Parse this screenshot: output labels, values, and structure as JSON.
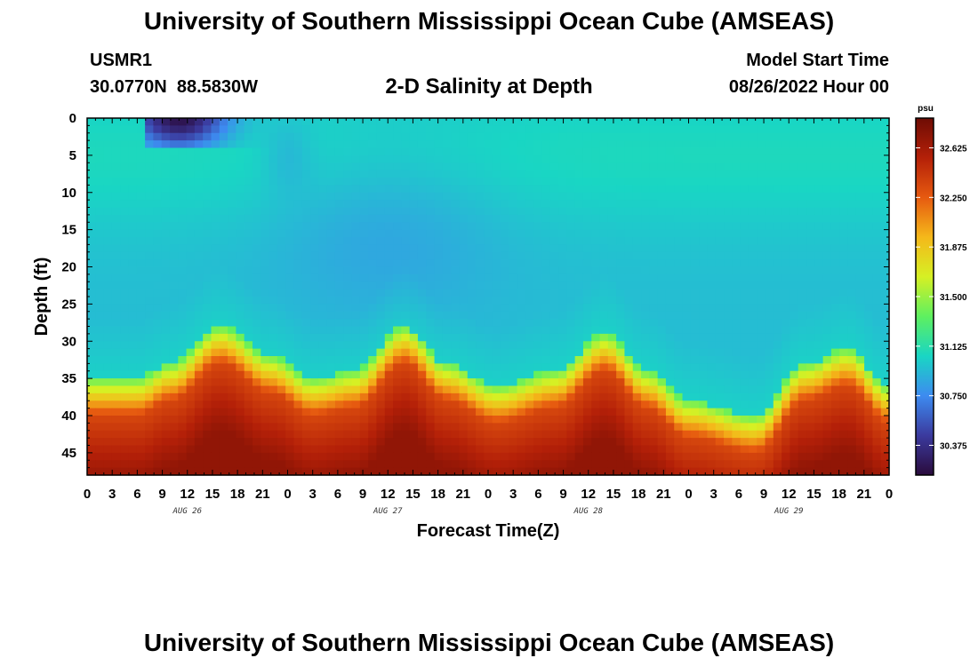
{
  "header": {
    "title": "University of Southern Mississippi Ocean Cube (AMSEAS)",
    "station_id": "USMR1",
    "station_coords": "30.0770N  88.5830W",
    "subtitle": "2-D Salinity at Depth",
    "model_label": "Model Start Time",
    "model_time": "08/26/2022 Hour 00"
  },
  "footer": {
    "title": "University of Southern Mississippi Ocean Cube (AMSEAS)"
  },
  "chart_data": {
    "type": "heatmap",
    "xlabel": "Forecast Time(Z)",
    "ylabel": "Depth (ft)",
    "x_range_hours": [
      0,
      96
    ],
    "y_range_ft": [
      0,
      48
    ],
    "x_tick_labels": [
      "0",
      "3",
      "6",
      "9",
      "12",
      "15",
      "18",
      "21",
      "0",
      "3",
      "6",
      "9",
      "12",
      "15",
      "18",
      "21",
      "0",
      "3",
      "6",
      "9",
      "12",
      "15",
      "18",
      "21",
      "0",
      "3",
      "6",
      "9",
      "12",
      "15",
      "18",
      "21",
      "0"
    ],
    "day_labels": [
      "AUG 26",
      "AUG 27",
      "AUG 28",
      "AUG 29"
    ],
    "y_ticks": [
      0,
      5,
      10,
      15,
      20,
      25,
      30,
      35,
      40,
      45
    ],
    "y_inverted": true,
    "colorbar": {
      "unit": "psu",
      "min": 30.15,
      "max": 32.85,
      "ticks": [
        "32.625",
        "32.250",
        "31.875",
        "31.500",
        "31.125",
        "30.750",
        "30.375"
      ],
      "colors": [
        "#2a0b3c",
        "#3b3a9e",
        "#3d8bf0",
        "#19d6c4",
        "#5ef060",
        "#d6f024",
        "#f5b81a",
        "#e65a10",
        "#b42008",
        "#6e0c04"
      ]
    },
    "salinity_layers": {
      "description": "halocline depth (ft) by forecast hour; fresher water above, saltier below",
      "interface_hours": [
        0,
        6,
        10,
        16,
        22,
        27,
        32,
        38,
        43,
        49,
        56,
        62,
        67,
        72,
        80,
        86,
        91,
        96
      ],
      "interface_depth_ft": [
        35,
        35,
        33,
        28,
        32,
        35,
        34,
        28,
        33,
        36,
        34,
        29,
        34,
        38,
        40,
        33,
        31,
        36
      ],
      "surface_fresh_event": {
        "start_hour": 7,
        "end_hour": 23,
        "max_depth_ft": 4,
        "min_salinity": 30.2
      }
    }
  }
}
